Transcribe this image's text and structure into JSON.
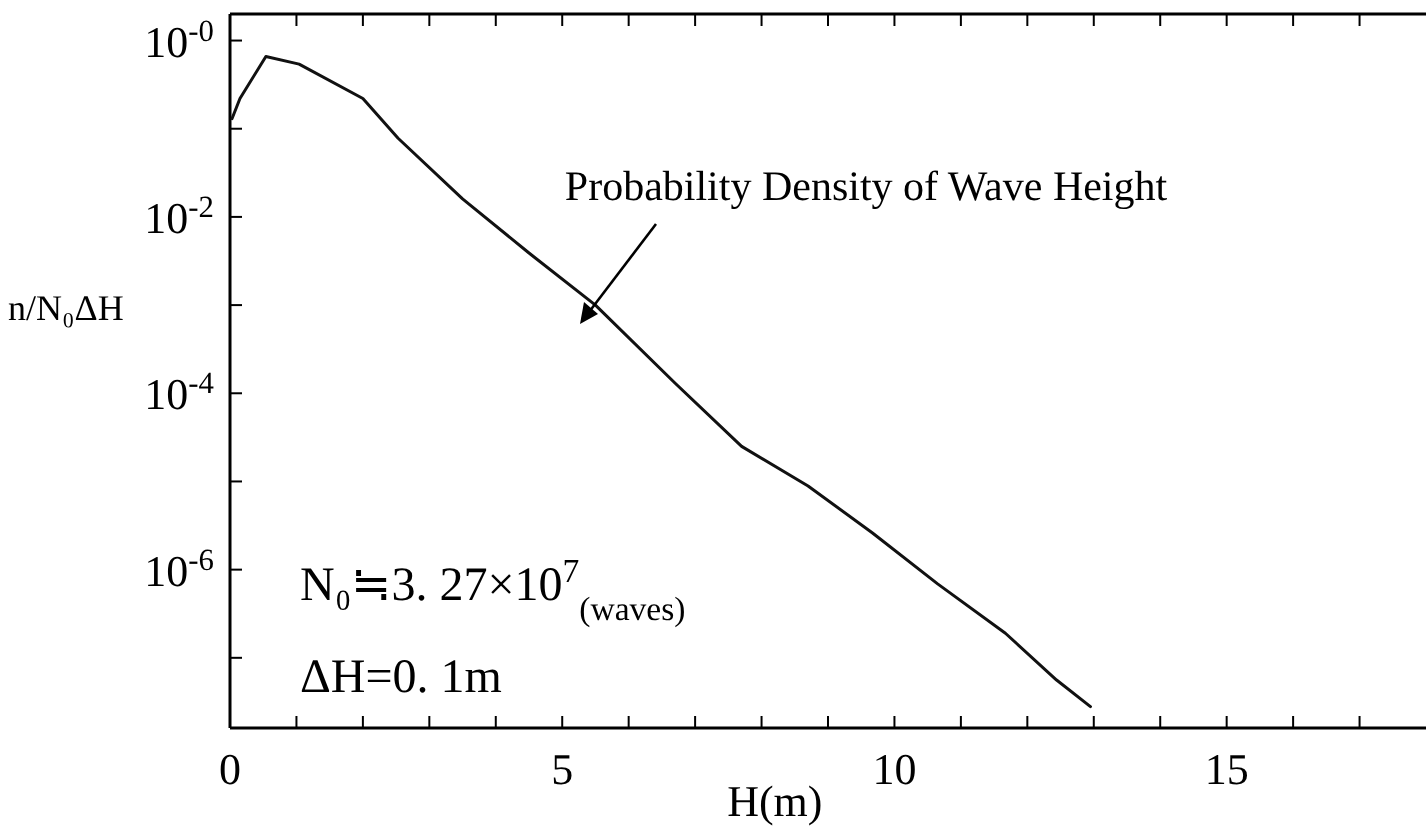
{
  "chart_data": {
    "type": "line",
    "xlabel": "H(m)",
    "ylabel": "n/N₀ΔH",
    "log": "y",
    "color": "#111111",
    "x": [
      0.03,
      0.15,
      0.54,
      1.04,
      2.0,
      2.53,
      3.5,
      4.5,
      5.5,
      6.7,
      7.7,
      8.7,
      9.67,
      10.65,
      11.67,
      12.44,
      12.95
    ],
    "values": [
      0.13,
      0.22,
      0.66,
      0.54,
      0.22,
      0.078,
      0.016,
      0.0039,
      0.001,
      0.00013,
      2.5e-05,
      8.9e-06,
      2.6e-06,
      6.9e-07,
      1.9e-07,
      5.6e-08,
      2.8e-08
    ],
    "xlim": [
      0,
      18
    ],
    "xticks": [
      0,
      {
        "value": 1,
        "label": null
      },
      {
        "value": 2,
        "label": null
      },
      {
        "value": 3,
        "label": null
      },
      {
        "value": 4,
        "label": null
      },
      5,
      {
        "value": 6,
        "label": null
      },
      {
        "value": 7,
        "label": null
      },
      {
        "value": 8,
        "label": null
      },
      {
        "value": 9,
        "label": null
      },
      10,
      {
        "value": 11,
        "label": null
      },
      {
        "value": 12,
        "label": null
      },
      {
        "value": 13,
        "label": null
      },
      {
        "value": 14,
        "label": null
      },
      15,
      {
        "value": 16,
        "label": null
      },
      {
        "value": 17,
        "label": null
      }
    ],
    "ylim": [
      1.6e-08,
      2
    ],
    "yticks": [
      {
        "value": 1,
        "label": "10$^{-0}$"
      },
      {
        "value": 0.1,
        "label": null
      },
      {
        "value": 0.01,
        "label": "10$^{-2}$"
      },
      {
        "value": 0.001,
        "label": null
      },
      {
        "value": 0.0001,
        "label": "10$^{-4}$"
      },
      {
        "value": 1e-05,
        "label": null
      },
      {
        "value": 1e-06,
        "label": "10$^{-6}$"
      },
      {
        "value": 1e-07,
        "label": null
      }
    ],
    "grid": false,
    "marker": "none",
    "line_style": "solid",
    "annotations": [
      "Probability Density of Wave Height",
      "N₀≒3. 27×10$^{7}$$_{(waves)}$",
      "ΔH=0. 1m"
    ]
  }
}
